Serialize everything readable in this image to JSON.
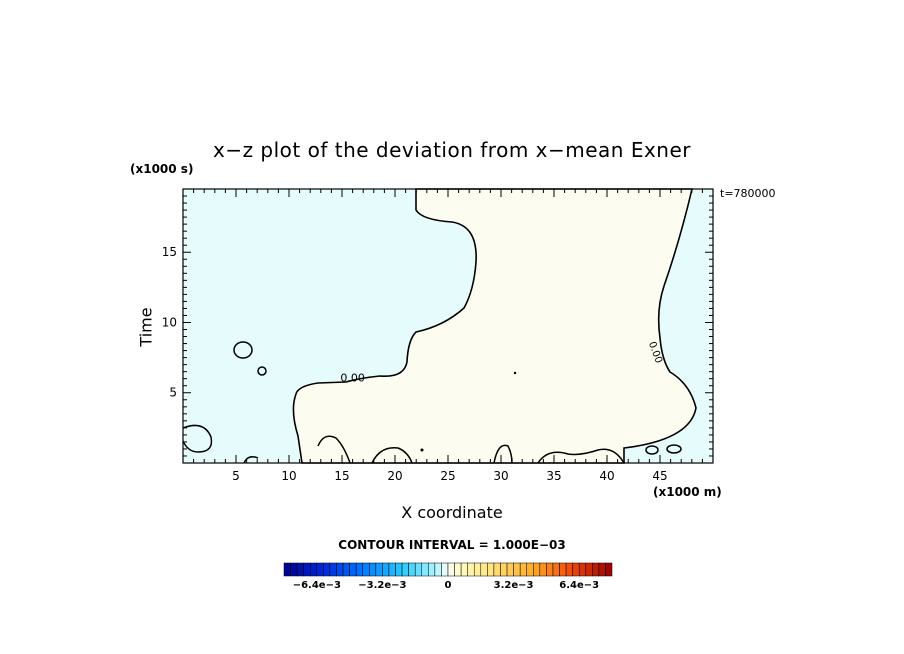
{
  "chart_data": {
    "type": "contour",
    "title": "x−z plot of the deviation from x−mean Exner",
    "xlabel": "X coordinate",
    "ylabel": "Time",
    "x_unit": "(x1000 m)",
    "y_unit": "(x1000 s)",
    "time_label": "t=780000",
    "xlim": [
      0,
      50
    ],
    "ylim": [
      0,
      19.5
    ],
    "x_ticks": [
      5,
      10,
      15,
      20,
      25,
      30,
      35,
      40,
      45
    ],
    "y_ticks": [
      5,
      10,
      15
    ],
    "contour_labels": [
      {
        "text": "0.00",
        "x": 16,
        "y": 6.1
      },
      {
        "text": "0.00",
        "x": 44.3,
        "y": 7.8
      }
    ],
    "contour_interval_text": "CONTOUR INTERVAL = 1.000E−03",
    "colorbar": {
      "min": -0.008,
      "max": 0.008,
      "tick_labels": [
        "−6.4e−3",
        "−3.2e−3",
        "0",
        "3.2e−3",
        "6.4e−3"
      ],
      "tick_values": [
        -0.0064,
        -0.0032,
        0,
        0.0032,
        0.0064
      ]
    },
    "region_colors": {
      "negative": "#e6fcfc",
      "positive": "#fcfcf0"
    }
  }
}
